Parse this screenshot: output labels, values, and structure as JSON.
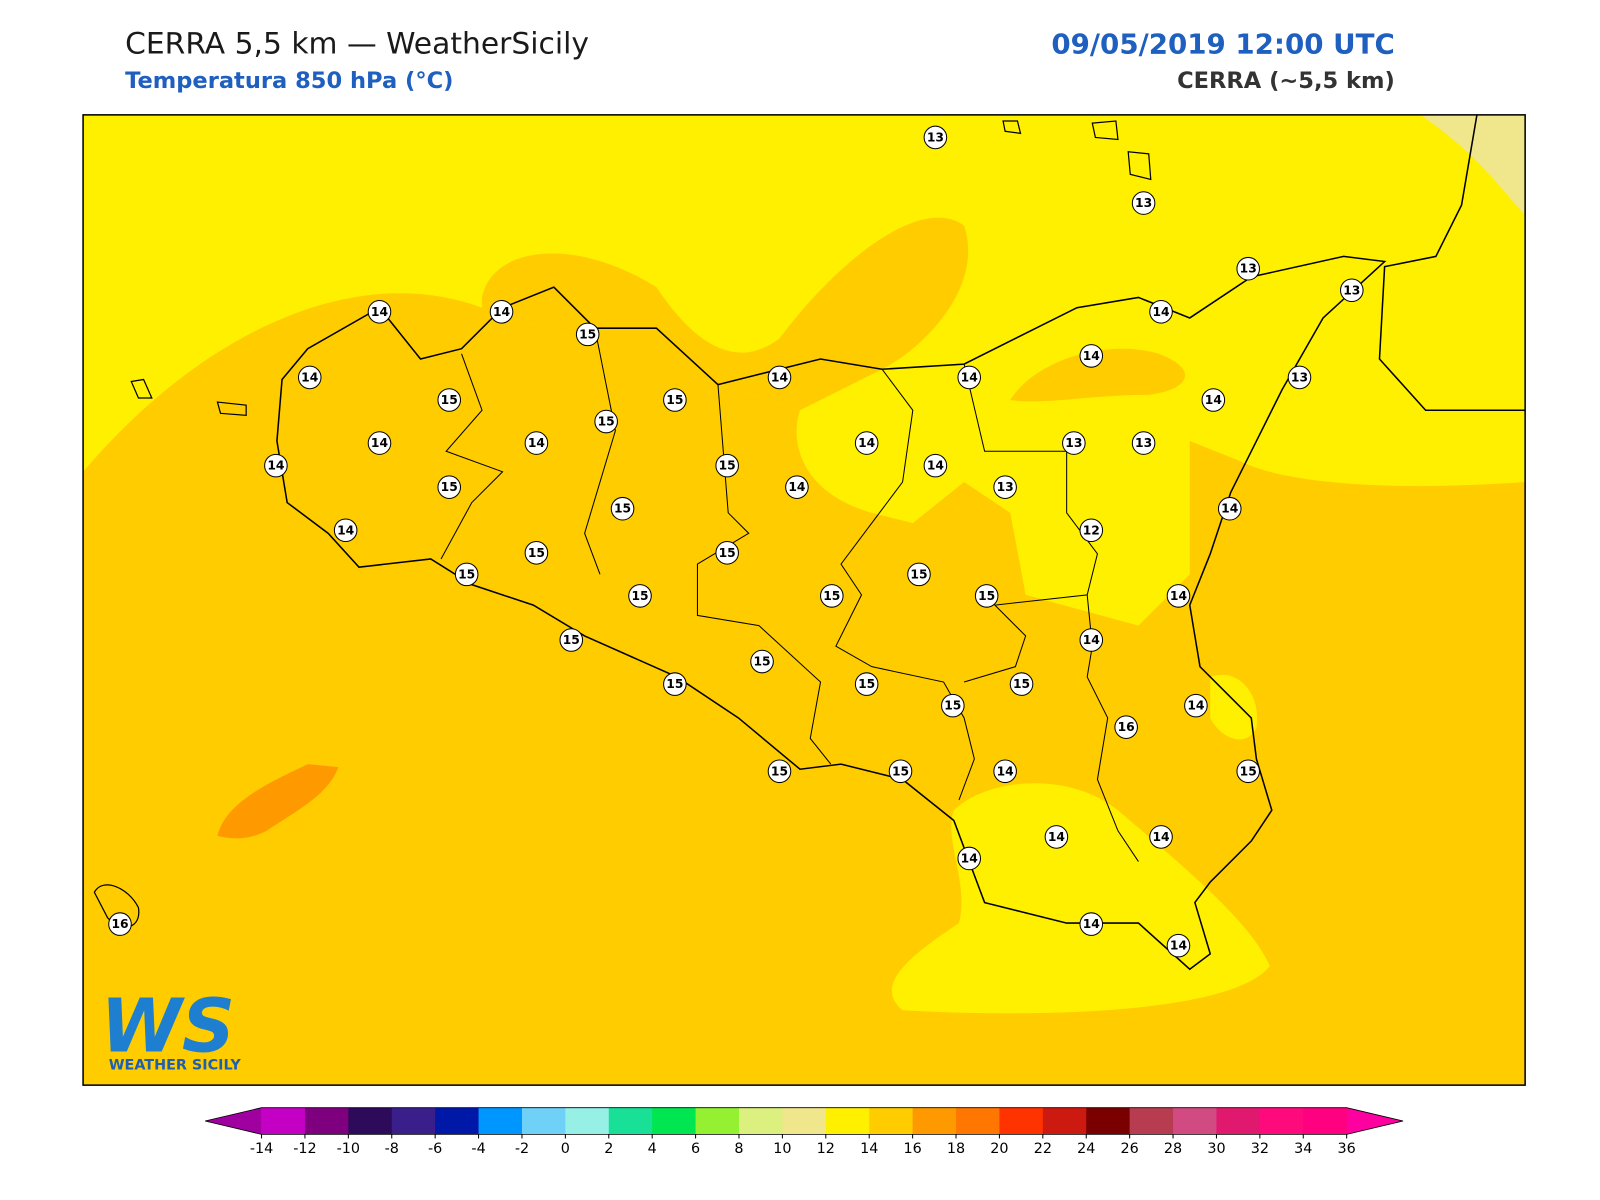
{
  "header": {
    "title": "CERRA 5,5 km — WeatherSicily",
    "subtitle": "Temperatura 850 hPa (°C)",
    "datetime": "09/05/2019 12:00 UTC",
    "source": "CERRA (~5,5 km)"
  },
  "logo": {
    "text": "WS",
    "caption": "WEATHER SICILY"
  },
  "stations": [
    13,
    13,
    13,
    13,
    14,
    14,
    15,
    14,
    14,
    14,
    15,
    15,
    14,
    14,
    14,
    13,
    15,
    14,
    14,
    14,
    13,
    13,
    14,
    15,
    14,
    15,
    14,
    13,
    15,
    14,
    14,
    12,
    15,
    15,
    15,
    15,
    15,
    15,
    15,
    14,
    15,
    14,
    15,
    15,
    15,
    15,
    14,
    15,
    16,
    15,
    15,
    14,
    15,
    14,
    14,
    14,
    14,
    14,
    16
  ],
  "colorbar": {
    "ticks": [
      -14,
      -12,
      -10,
      -8,
      -6,
      -4,
      -2,
      0,
      2,
      4,
      6,
      8,
      10,
      12,
      14,
      16,
      18,
      20,
      22,
      24,
      26,
      28,
      30,
      32,
      34,
      36
    ],
    "colors": [
      "#c400c4",
      "#7f007f",
      "#2e0a5a",
      "#3a1e8a",
      "#0018a8",
      "#0096ff",
      "#6fd0f8",
      "#96f0e6",
      "#18e096",
      "#00e650",
      "#96f032",
      "#dcf07f",
      "#f0e68c",
      "#fff000",
      "#ffcc00",
      "#ff9900",
      "#ff7700",
      "#ff3300",
      "#cc1a10",
      "#7a0000",
      "#b83c50",
      "#d24a82",
      "#e0186e",
      "#ff0a7c",
      "#ff0080"
    ],
    "under": "#a000a0",
    "over": "#ff00a0"
  }
}
